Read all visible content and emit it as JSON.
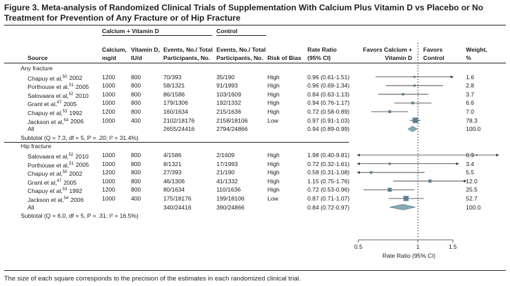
{
  "figure": {
    "title": "Figure 3. Meta-analysis of Randomized Clinical Trials of Supplementation With Calcium Plus Vitamin D vs Placebo or No Treatment for Prevention of Any Fracture or of Hip Fracture",
    "footnote": "The size of each square corresponds to the precision of the estimates in each randomized clinical trial."
  },
  "headers": {
    "group_treatment": "Calcium + Vitamin D",
    "group_control": "Control",
    "source": "Source",
    "calcium": [
      "Calcium,",
      "mg/d"
    ],
    "vitamin_d": [
      "Vitamin D,",
      "IU/d"
    ],
    "events_treat": [
      "Events, No./ Total",
      "Participants, No."
    ],
    "events_ctrl": [
      "Events, No./ Total",
      "Participants, No."
    ],
    "risk_of_bias": "Risk of Bias",
    "rate_ratio": [
      "Rate Ratio",
      "(95% CI)"
    ],
    "favors_left": [
      "Favors Calcium +",
      "Vitamin D"
    ],
    "favors_right": [
      "Favors",
      "Control"
    ],
    "weight": [
      "Weight,",
      "%"
    ]
  },
  "sections": [
    {
      "label": "Any fracture",
      "studies": [
        {
          "source": "Chapuy et al,",
          "ref": "50",
          "year": "2002",
          "calcium": "1200",
          "vitd": "800",
          "treat": "70/393",
          "ctrl": "35/190",
          "bias": "High",
          "rr_text": "0.96 (0.61-1.51)",
          "rr": 0.96,
          "lo": 0.61,
          "hi": 1.51,
          "weight": "1.6",
          "w": 1.6
        },
        {
          "source": "Porthouse et al,",
          "ref": "51",
          "year": "2005",
          "calcium": "1000",
          "vitd": "800",
          "treat": "58/1321",
          "ctrl": "91/1993",
          "bias": "High",
          "rr_text": "0.96 (0.69-1.34)",
          "rr": 0.96,
          "lo": 0.69,
          "hi": 1.34,
          "weight": "2.8",
          "w": 2.8
        },
        {
          "source": "Salovaara et al,",
          "ref": "52",
          "year": "2010",
          "calcium": "1000",
          "vitd": "800",
          "treat": "86/1586",
          "ctrl": "103/1609",
          "bias": "High",
          "rr_text": "0.84 (0.63-1.13)",
          "rr": 0.84,
          "lo": 0.63,
          "hi": 1.13,
          "weight": "3.7",
          "w": 3.7
        },
        {
          "source": "Grant et al,",
          "ref": "47",
          "year": "2005",
          "calcium": "1000",
          "vitd": "800",
          "treat": "179/1306",
          "ctrl": "192/1332",
          "bias": "High",
          "rr_text": "0.94 (0.76-1.17)",
          "rr": 0.94,
          "lo": 0.76,
          "hi": 1.17,
          "weight": "6.6",
          "w": 6.6
        },
        {
          "source": "Chapuy et al,",
          "ref": "53",
          "year": "1992",
          "calcium": "1200",
          "vitd": "800",
          "treat": "160/1634",
          "ctrl": "215/1636",
          "bias": "High",
          "rr_text": "0.72 (0.58-0.89)",
          "rr": 0.72,
          "lo": 0.58,
          "hi": 0.89,
          "weight": "7.0",
          "w": 7.0
        },
        {
          "source": "Jackson et al,",
          "ref": "54",
          "year": "2006",
          "calcium": "1000",
          "vitd": "400",
          "treat": "2102/18176",
          "ctrl": "2158/18106",
          "bias": "Low",
          "rr_text": "0.97 (0.91-1.03)",
          "rr": 0.97,
          "lo": 0.91,
          "hi": 1.03,
          "weight": "78.3",
          "w": 78.3
        }
      ],
      "all": {
        "label": "All",
        "treat": "2655/24416",
        "ctrl": "2794/24866",
        "rr_text": "0.94 (0.89-0.99)",
        "rr": 0.94,
        "lo": 0.89,
        "hi": 0.99,
        "weight": "100.0"
      },
      "subtotal": "Subtotal (Q = 7.3, df = 5, P = .20; I² = 31.4%)"
    },
    {
      "label": "Hip fracture",
      "studies": [
        {
          "source": "Salovaara et al,",
          "ref": "52",
          "year": "2010",
          "calcium": "1000",
          "vitd": "800",
          "treat": "4/1586",
          "ctrl": "2/1609",
          "bias": "High",
          "rr_text": "1.98 (0.40-9.81)",
          "rr": 1.98,
          "lo": 0.4,
          "hi": 9.81,
          "weight": "0.9",
          "w": 0.9
        },
        {
          "source": "Porthouse et al,",
          "ref": "51",
          "year": "2005",
          "calcium": "1000",
          "vitd": "800",
          "treat": "8/1321",
          "ctrl": "17/1993",
          "bias": "High",
          "rr_text": "0.72 (0.32-1.61)",
          "rr": 0.72,
          "lo": 0.32,
          "hi": 1.61,
          "weight": "3.4",
          "w": 3.4
        },
        {
          "source": "Chapuy et al,",
          "ref": "50",
          "year": "2002",
          "calcium": "1200",
          "vitd": "800",
          "treat": "27/393",
          "ctrl": "21/190",
          "bias": "High",
          "rr_text": "0.58 (0.31-1.08)",
          "rr": 0.58,
          "lo": 0.31,
          "hi": 1.08,
          "weight": "5.5",
          "w": 5.5
        },
        {
          "source": "Grant et al,",
          "ref": "47",
          "year": "2005",
          "calcium": "1000",
          "vitd": "800",
          "treat": "46/1306",
          "ctrl": "41/1332",
          "bias": "High",
          "rr_text": "1.15 (0.75-1.76)",
          "rr": 1.15,
          "lo": 0.75,
          "hi": 1.76,
          "weight": "12.0",
          "w": 12.0
        },
        {
          "source": "Chapuy et al,",
          "ref": "53",
          "year": "1992",
          "calcium": "1200",
          "vitd": "800",
          "treat": "80/1634",
          "ctrl": "110/1636",
          "bias": "High",
          "rr_text": "0.72 (0.53-0.96)",
          "rr": 0.72,
          "lo": 0.53,
          "hi": 0.96,
          "weight": "25.5",
          "w": 25.5
        },
        {
          "source": "Jackson et al,",
          "ref": "54",
          "year": "2006",
          "calcium": "1000",
          "vitd": "400",
          "treat": "175/18176",
          "ctrl": "199/18106",
          "bias": "Low",
          "rr_text": "0.87 (0.71-1.07)",
          "rr": 0.87,
          "lo": 0.71,
          "hi": 1.07,
          "weight": "52.7",
          "w": 52.7
        }
      ],
      "all": {
        "label": "All",
        "treat": "340/24416",
        "ctrl": "390/24866",
        "rr_text": "0.84 (0.72-0.97)",
        "rr": 0.84,
        "lo": 0.72,
        "hi": 0.97,
        "weight": "100.0"
      },
      "subtotal": "Subtotal (Q = 6.0, df = 5, P = .31; I² = 16.5%)"
    }
  ],
  "axis": {
    "scale": "log",
    "range": [
      0.5,
      1.5
    ],
    "ticks": [
      {
        "value": 0.5,
        "label": "0.5"
      },
      {
        "value": 1,
        "label": "1"
      },
      {
        "value": 1.5,
        "label": "1.5"
      }
    ],
    "label": "Rate Ratio (95% CI)"
  },
  "colors": {
    "square": "#5e7f95",
    "diamond": "#87a9b5",
    "diamond_stroke": "#4f6f80",
    "line": "#333333"
  }
}
